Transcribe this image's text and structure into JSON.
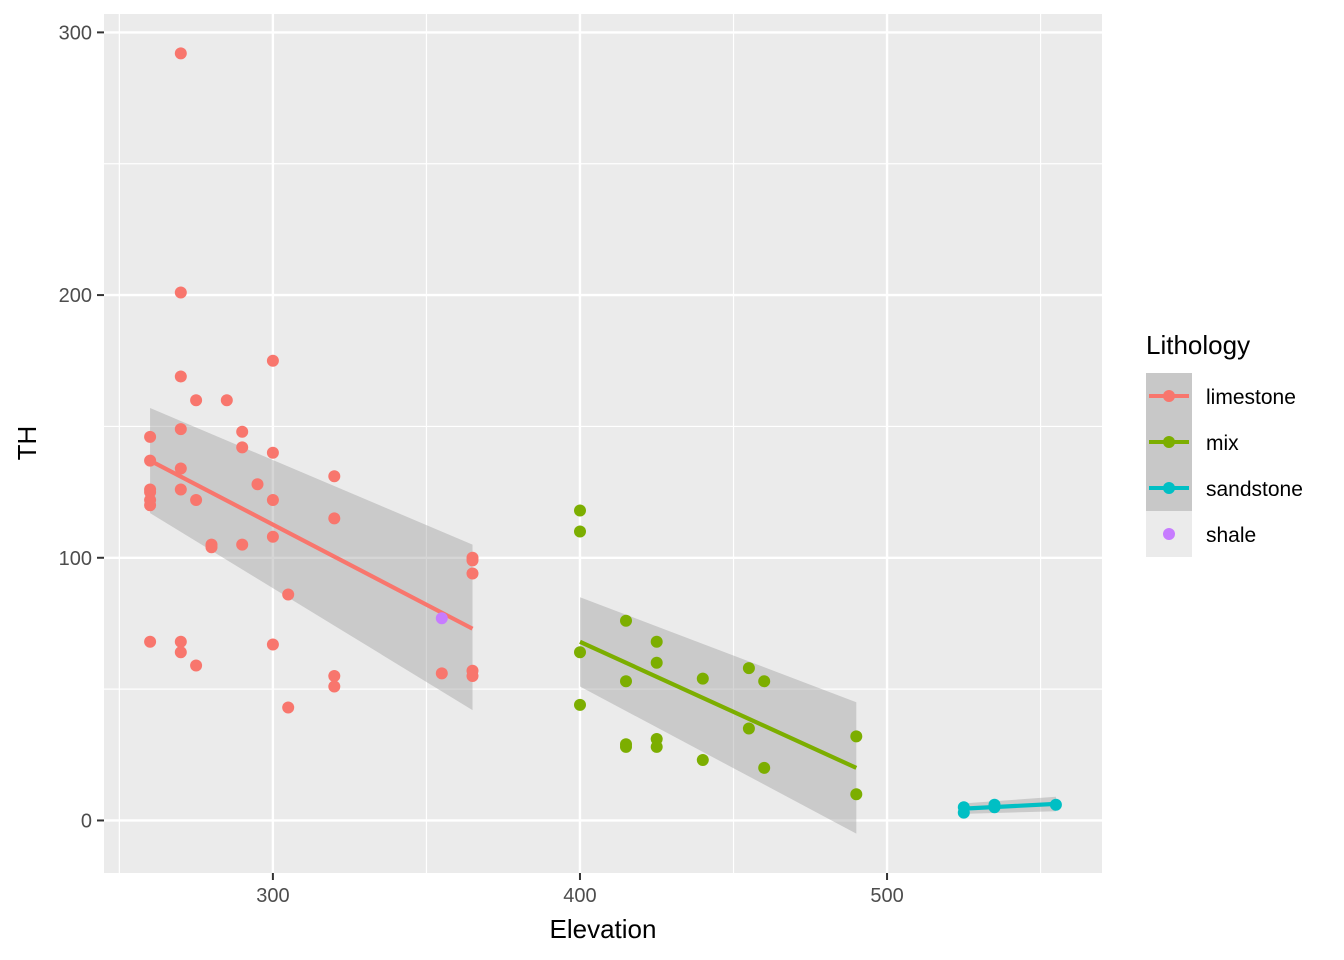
{
  "chart_data": {
    "type": "scatter",
    "xlabel": "Elevation",
    "ylabel": "TH",
    "xlim": [
      245,
      570
    ],
    "ylim": [
      -20,
      307
    ],
    "x_ticks": [
      300,
      400,
      500
    ],
    "y_ticks": [
      0,
      100,
      200,
      300
    ],
    "grid": true,
    "legend": {
      "title": "Lithology",
      "position": "right",
      "entries": [
        "limestone",
        "mix",
        "sandstone",
        "shale"
      ]
    },
    "colors": {
      "limestone": "#F8766D",
      "mix": "#7CAE00",
      "sandstone": "#00BFC4",
      "shale": "#C77CFF",
      "ribbon": "#999999",
      "panel": "#EBEBEB",
      "grid": "#FFFFFF"
    },
    "series": [
      {
        "name": "limestone",
        "points": [
          [
            260,
            146
          ],
          [
            260,
            137
          ],
          [
            260,
            126
          ],
          [
            260,
            125
          ],
          [
            260,
            122
          ],
          [
            260,
            120
          ],
          [
            260,
            68
          ],
          [
            270,
            292
          ],
          [
            270,
            201
          ],
          [
            270,
            169
          ],
          [
            270,
            149
          ],
          [
            270,
            134
          ],
          [
            270,
            126
          ],
          [
            270,
            68
          ],
          [
            270,
            64
          ],
          [
            275,
            160
          ],
          [
            275,
            122
          ],
          [
            275,
            59
          ],
          [
            280,
            105
          ],
          [
            280,
            104
          ],
          [
            285,
            160
          ],
          [
            290,
            148
          ],
          [
            290,
            142
          ],
          [
            290,
            105
          ],
          [
            295,
            128
          ],
          [
            300,
            175
          ],
          [
            300,
            140
          ],
          [
            300,
            122
          ],
          [
            300,
            108
          ],
          [
            300,
            67
          ],
          [
            305,
            86
          ],
          [
            305,
            43
          ],
          [
            320,
            131
          ],
          [
            320,
            115
          ],
          [
            320,
            55
          ],
          [
            320,
            51
          ],
          [
            355,
            56
          ],
          [
            365,
            100
          ],
          [
            365,
            99
          ],
          [
            365,
            94
          ],
          [
            365,
            57
          ],
          [
            365,
            55
          ]
        ],
        "fit": {
          "x": [
            260,
            365
          ],
          "y": [
            137,
            73
          ]
        },
        "ci": {
          "x": [
            260,
            365
          ],
          "lower": [
            117,
            42
          ],
          "upper": [
            157,
            105
          ]
        }
      },
      {
        "name": "mix",
        "points": [
          [
            400,
            118
          ],
          [
            400,
            110
          ],
          [
            400,
            64
          ],
          [
            400,
            44
          ],
          [
            415,
            76
          ],
          [
            415,
            53
          ],
          [
            415,
            29
          ],
          [
            415,
            28
          ],
          [
            425,
            68
          ],
          [
            425,
            60
          ],
          [
            425,
            31
          ],
          [
            425,
            28
          ],
          [
            440,
            54
          ],
          [
            440,
            23
          ],
          [
            455,
            58
          ],
          [
            455,
            35
          ],
          [
            460,
            53
          ],
          [
            460,
            20
          ],
          [
            490,
            32
          ],
          [
            490,
            10
          ]
        ],
        "fit": {
          "x": [
            400,
            490
          ],
          "y": [
            68,
            20
          ]
        },
        "ci": {
          "x": [
            400,
            490
          ],
          "lower": [
            51,
            -5
          ],
          "upper": [
            85,
            45
          ]
        }
      },
      {
        "name": "sandstone",
        "points": [
          [
            525,
            5
          ],
          [
            525,
            3
          ],
          [
            535,
            6
          ],
          [
            535,
            5
          ],
          [
            555,
            6
          ]
        ],
        "fit": {
          "x": [
            525,
            555
          ],
          "y": [
            4.5,
            6.3
          ]
        },
        "ci": {
          "x": [
            525,
            555
          ],
          "lower": [
            2.5,
            3.5
          ],
          "upper": [
            6.5,
            9
          ]
        }
      },
      {
        "name": "shale",
        "points": [
          [
            355,
            77
          ]
        ]
      }
    ]
  }
}
